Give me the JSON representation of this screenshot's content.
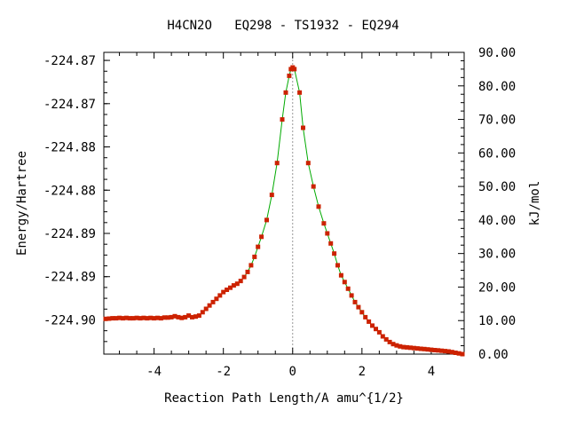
{
  "chart_data": {
    "type": "line",
    "title": "H4CN2O   EQ298 - TS1932 - EQ294",
    "xlabel": "Reaction Path Length/A amu^{1/2}",
    "ylabel_left": "Energy/Hartree",
    "ylabel_right": "kJ/mol",
    "xlim": [
      -5.45,
      4.95
    ],
    "ylim_kj": [
      0.0,
      90.0
    ],
    "x_ticks": [
      -4,
      -2,
      0,
      2,
      4
    ],
    "x_tick_labels": [
      "-4",
      "-2",
      "0",
      "2",
      "4"
    ],
    "left_tick_kj": [
      10.2,
      23.1,
      36.0,
      48.9,
      61.8,
      74.7,
      87.6
    ],
    "left_tick_labels": [
      "-224.90",
      "-224.89",
      "-224.89",
      "-224.88",
      "-224.88",
      "-224.87",
      "-224.87"
    ],
    "right_ticks": [
      0,
      10,
      20,
      30,
      40,
      50,
      60,
      70,
      80,
      90
    ],
    "right_tick_labels": [
      "0.00",
      "10.00",
      "20.00",
      "30.00",
      "40.00",
      "50.00",
      "60.00",
      "70.00",
      "80.00",
      "90.00"
    ],
    "ts_marker_x": 0.0,
    "series": [
      {
        "line_color": "#00aa00",
        "marker_color": "#cc2200",
        "x": [
          -5.4,
          -5.3,
          -5.2,
          -5.1,
          -5.0,
          -4.9,
          -4.8,
          -4.7,
          -4.6,
          -4.5,
          -4.4,
          -4.3,
          -4.2,
          -4.1,
          -4.0,
          -3.9,
          -3.8,
          -3.7,
          -3.6,
          -3.5,
          -3.4,
          -3.3,
          -3.2,
          -3.1,
          -3.0,
          -2.9,
          -2.8,
          -2.7,
          -2.6,
          -2.5,
          -2.4,
          -2.3,
          -2.2,
          -2.1,
          -2.0,
          -1.9,
          -1.8,
          -1.7,
          -1.6,
          -1.5,
          -1.4,
          -1.3,
          -1.2,
          -1.1,
          -1.0,
          -0.9,
          -0.75,
          -0.6,
          -0.45,
          -0.3,
          -0.2,
          -0.1,
          -0.05,
          0.0,
          0.05,
          0.2,
          0.3,
          0.45,
          0.6,
          0.75,
          0.9,
          1.0,
          1.1,
          1.2,
          1.3,
          1.4,
          1.5,
          1.6,
          1.7,
          1.8,
          1.9,
          2.0,
          2.1,
          2.2,
          2.3,
          2.4,
          2.5,
          2.6,
          2.7,
          2.8,
          2.9,
          3.0,
          3.1,
          3.2,
          3.3,
          3.4,
          3.5,
          3.6,
          3.7,
          3.8,
          3.9,
          4.0,
          4.1,
          4.2,
          4.3,
          4.4,
          4.5,
          4.6,
          4.7,
          4.8,
          4.9
        ],
        "y": [
          10.5,
          10.6,
          10.7,
          10.7,
          10.8,
          10.7,
          10.8,
          10.7,
          10.7,
          10.8,
          10.7,
          10.8,
          10.7,
          10.8,
          10.7,
          10.8,
          10.7,
          10.9,
          10.9,
          11.0,
          11.3,
          11.0,
          10.8,
          11.0,
          11.5,
          11.0,
          11.2,
          11.5,
          12.5,
          13.5,
          14.5,
          15.5,
          16.5,
          17.5,
          18.5,
          19.2,
          19.8,
          20.5,
          21.0,
          21.8,
          23.0,
          24.5,
          26.5,
          29.0,
          32.0,
          35.0,
          40.0,
          47.5,
          57.0,
          70.0,
          78.0,
          83.0,
          85.0,
          85.5,
          85.0,
          78.0,
          67.5,
          57.0,
          50.0,
          44.0,
          39.0,
          36.0,
          33.0,
          30.0,
          26.5,
          23.5,
          21.5,
          19.5,
          17.5,
          15.5,
          14.0,
          12.5,
          11.0,
          9.7,
          8.5,
          7.5,
          6.5,
          5.3,
          4.4,
          3.6,
          3.0,
          2.6,
          2.3,
          2.1,
          2.0,
          1.9,
          1.8,
          1.7,
          1.6,
          1.5,
          1.4,
          1.3,
          1.2,
          1.1,
          1.0,
          0.9,
          0.8,
          0.6,
          0.4,
          0.2,
          0.0
        ]
      }
    ]
  }
}
